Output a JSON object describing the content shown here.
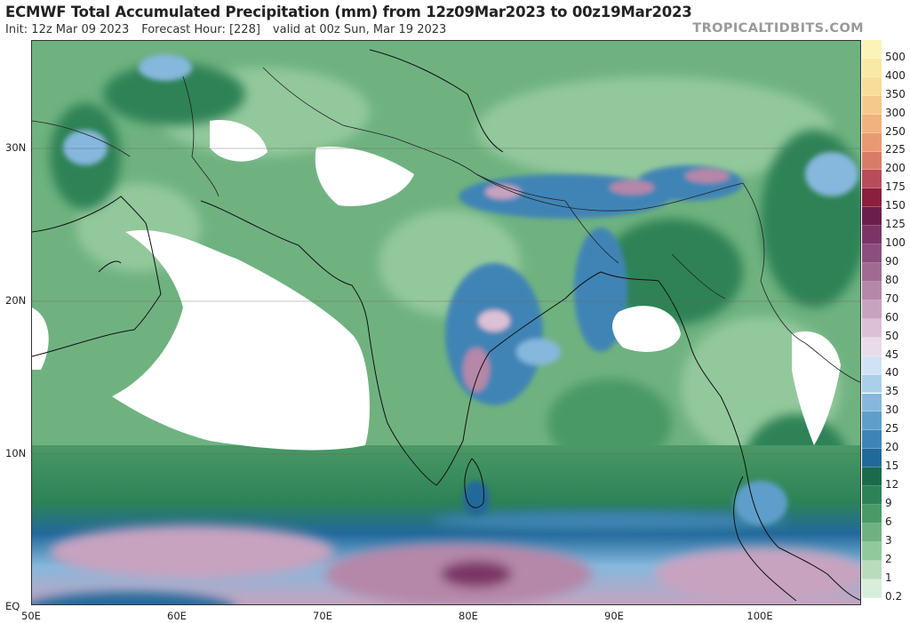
{
  "header": {
    "title": "ECMWF Total Accumulated Precipitation (mm) from 12z09Mar2023 to 00z19Mar2023",
    "init": "Init: 12z Mar 09 2023",
    "forecast_hour": "Forecast Hour: [228]",
    "valid": "valid at 00z Sun, Mar 19 2023",
    "brand": "TROPICALTIDBITS.COM"
  },
  "map": {
    "lat_labels": [
      "30N",
      "20N",
      "10N",
      "EQ"
    ],
    "lon_labels": [
      "50E",
      "60E",
      "70E",
      "80E",
      "90E",
      "100E"
    ]
  },
  "legend": {
    "units": "mm",
    "levels": [
      {
        "label": "500",
        "color": "#fbf3b8"
      },
      {
        "label": "400",
        "color": "#f8e9a6"
      },
      {
        "label": "350",
        "color": "#f7dd98"
      },
      {
        "label": "300",
        "color": "#f5c98c"
      },
      {
        "label": "250",
        "color": "#f0b27e"
      },
      {
        "label": "225",
        "color": "#e99a72"
      },
      {
        "label": "200",
        "color": "#d97c67"
      },
      {
        "label": "175",
        "color": "#b94c5b"
      },
      {
        "label": "150",
        "color": "#8a1f3e"
      },
      {
        "label": "125",
        "color": "#6b1e4c"
      },
      {
        "label": "100",
        "color": "#7a3566"
      },
      {
        "label": "90",
        "color": "#8c4e7c"
      },
      {
        "label": "80",
        "color": "#a06a92"
      },
      {
        "label": "70",
        "color": "#b587a8"
      },
      {
        "label": "60",
        "color": "#c8a3bf"
      },
      {
        "label": "50",
        "color": "#dcc0d6"
      },
      {
        "label": "45",
        "color": "#eadbe9"
      },
      {
        "label": "40",
        "color": "#cfe3f4"
      },
      {
        "label": "35",
        "color": "#a9cfea"
      },
      {
        "label": "30",
        "color": "#85b8dc"
      },
      {
        "label": "25",
        "color": "#5f9ecb"
      },
      {
        "label": "20",
        "color": "#3f84b6"
      },
      {
        "label": "15",
        "color": "#22699b"
      },
      {
        "label": "12",
        "color": "#1b6b4a"
      },
      {
        "label": "9",
        "color": "#2d8257"
      },
      {
        "label": "6",
        "color": "#4a9966"
      },
      {
        "label": "3",
        "color": "#6fb280"
      },
      {
        "label": "2",
        "color": "#93c89c"
      },
      {
        "label": "1",
        "color": "#b8dcbc"
      },
      {
        "label": "0.2",
        "color": "#d8eedb"
      }
    ]
  }
}
